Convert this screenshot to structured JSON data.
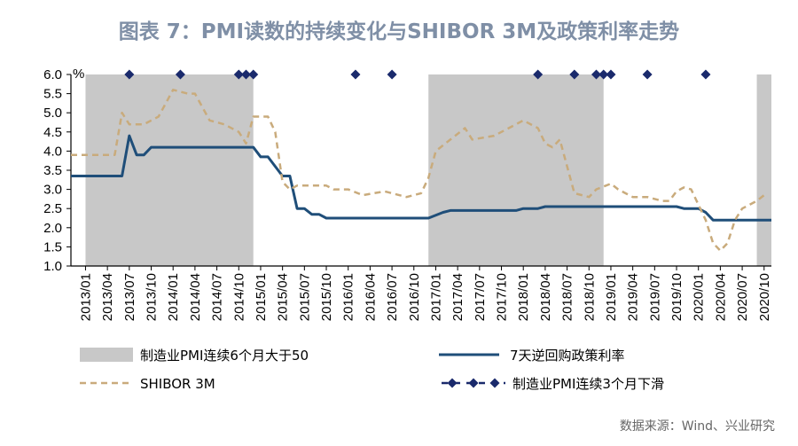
{
  "title": "图表 7：PMI读数的持续变化与SHIBOR 3M及政策利率走势",
  "source": "数据来源：Wind、兴业研究",
  "chart_data": {
    "type": "line",
    "unit_label": "%",
    "ylim": [
      1.0,
      6.0
    ],
    "y_ticks": [
      "1.0",
      "1.5",
      "2.0",
      "2.5",
      "3.0",
      "3.5",
      "4.0",
      "4.5",
      "5.0",
      "5.5",
      "6.0"
    ],
    "x_tick_labels": [
      "2013/01",
      "2013/04",
      "2013/07",
      "2013/10",
      "2014/01",
      "2014/04",
      "2014/07",
      "2014/10",
      "2015/01",
      "2015/04",
      "2015/07",
      "2015/10",
      "2016/01",
      "2016/04",
      "2016/07",
      "2016/10",
      "2017/01",
      "2017/04",
      "2017/07",
      "2017/10",
      "2018/01",
      "2018/04",
      "2018/07",
      "2018/10",
      "2019/01",
      "2019/04",
      "2019/07",
      "2019/10",
      "2020/01",
      "2020/04",
      "2020/07",
      "2020/10"
    ],
    "legend": {
      "shade": "制造业PMI连续6个月大于50",
      "policy": "7天逆回购政策利率",
      "shibor": "SHIBOR 3M",
      "markers": "制造业PMI连续3个月下滑"
    },
    "shaded_periods": [
      {
        "start": "2013/01",
        "end": "2014/12"
      },
      {
        "start": "2016/12",
        "end": "2018/12"
      },
      {
        "start": "2020/09",
        "end": "2020/11"
      }
    ],
    "marker_dates": [
      "2013/07",
      "2014/02",
      "2014/10",
      "2014/11",
      "2014/12",
      "2016/02",
      "2016/07",
      "2018/03",
      "2018/08",
      "2018/11",
      "2018/12",
      "2019/01",
      "2019/06",
      "2020/02"
    ],
    "series": [
      {
        "key": "policy",
        "color": "#1f4e79",
        "style": "solid",
        "points": [
          [
            "2012/11",
            3.35
          ],
          [
            "2013/06",
            3.35
          ],
          [
            "2013/07",
            4.4
          ],
          [
            "2013/08",
            3.9
          ],
          [
            "2013/09",
            3.9
          ],
          [
            "2013/10",
            4.1
          ],
          [
            "2014/12",
            4.1
          ],
          [
            "2015/01",
            3.85
          ],
          [
            "2015/02",
            3.85
          ],
          [
            "2015/04",
            3.35
          ],
          [
            "2015/05",
            3.35
          ],
          [
            "2015/06",
            2.5
          ],
          [
            "2015/07",
            2.5
          ],
          [
            "2015/08",
            2.35
          ],
          [
            "2015/09",
            2.35
          ],
          [
            "2015/10",
            2.25
          ],
          [
            "2016/12",
            2.25
          ],
          [
            "2017/02",
            2.4
          ],
          [
            "2017/03",
            2.45
          ],
          [
            "2017/12",
            2.45
          ],
          [
            "2018/01",
            2.5
          ],
          [
            "2018/03",
            2.5
          ],
          [
            "2018/04",
            2.55
          ],
          [
            "2019/10",
            2.55
          ],
          [
            "2019/11",
            2.5
          ],
          [
            "2020/01",
            2.5
          ],
          [
            "2020/02",
            2.4
          ],
          [
            "2020/03",
            2.2
          ],
          [
            "2020/11",
            2.2
          ]
        ]
      },
      {
        "key": "shibor",
        "color": "#c9ab7c",
        "style": "dashed",
        "points": [
          [
            "2012/11",
            3.9
          ],
          [
            "2013/01",
            3.9
          ],
          [
            "2013/05",
            3.9
          ],
          [
            "2013/06",
            5.0
          ],
          [
            "2013/07",
            4.7
          ],
          [
            "2013/09",
            4.7
          ],
          [
            "2013/11",
            4.9
          ],
          [
            "2014/01",
            5.6
          ],
          [
            "2014/03",
            5.5
          ],
          [
            "2014/04",
            5.5
          ],
          [
            "2014/06",
            4.8
          ],
          [
            "2014/08",
            4.7
          ],
          [
            "2014/10",
            4.5
          ],
          [
            "2014/11",
            4.2
          ],
          [
            "2014/12",
            4.9
          ],
          [
            "2015/02",
            4.9
          ],
          [
            "2015/03",
            4.5
          ],
          [
            "2015/04",
            3.2
          ],
          [
            "2015/05",
            3.0
          ],
          [
            "2015/06",
            3.1
          ],
          [
            "2015/10",
            3.1
          ],
          [
            "2015/11",
            3.0
          ],
          [
            "2016/01",
            3.0
          ],
          [
            "2016/03",
            2.85
          ],
          [
            "2016/06",
            2.95
          ],
          [
            "2016/09",
            2.8
          ],
          [
            "2016/11",
            2.9
          ],
          [
            "2016/12",
            3.3
          ],
          [
            "2017/01",
            4.0
          ],
          [
            "2017/03",
            4.3
          ],
          [
            "2017/05",
            4.6
          ],
          [
            "2017/06",
            4.3
          ],
          [
            "2017/09",
            4.4
          ],
          [
            "2017/11",
            4.6
          ],
          [
            "2018/01",
            4.8
          ],
          [
            "2018/03",
            4.6
          ],
          [
            "2018/04",
            4.2
          ],
          [
            "2018/05",
            4.1
          ],
          [
            "2018/06",
            4.3
          ],
          [
            "2018/08",
            2.9
          ],
          [
            "2018/10",
            2.8
          ],
          [
            "2018/11",
            3.0
          ],
          [
            "2019/01",
            3.15
          ],
          [
            "2019/02",
            3.0
          ],
          [
            "2019/04",
            2.8
          ],
          [
            "2019/06",
            2.8
          ],
          [
            "2019/08",
            2.7
          ],
          [
            "2019/09",
            2.7
          ],
          [
            "2019/10",
            2.95
          ],
          [
            "2019/11",
            3.05
          ],
          [
            "2019/12",
            3.0
          ],
          [
            "2020/01",
            2.6
          ],
          [
            "2020/02",
            2.2
          ],
          [
            "2020/03",
            1.6
          ],
          [
            "2020/04",
            1.4
          ],
          [
            "2020/05",
            1.6
          ],
          [
            "2020/06",
            2.2
          ],
          [
            "2020/07",
            2.5
          ],
          [
            "2020/08",
            2.6
          ],
          [
            "2020/09",
            2.7
          ],
          [
            "2020/10",
            2.85
          ]
        ]
      }
    ]
  }
}
